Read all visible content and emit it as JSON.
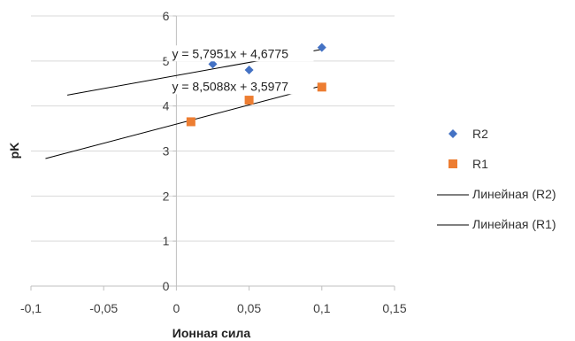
{
  "chart_data": {
    "type": "scatter",
    "xlabel": "Ионная сила",
    "ylabel": "pK",
    "xlim": [
      -0.1,
      0.15
    ],
    "ylim": [
      0,
      6
    ],
    "x_ticks": [
      "-0,1",
      "-0,05",
      "0",
      "0,05",
      "0,1",
      "0,15"
    ],
    "y_ticks": [
      "0",
      "1",
      "2",
      "3",
      "4",
      "5",
      "6"
    ],
    "grid": "horizontal",
    "legend_position": "right",
    "series": [
      {
        "name": "R2",
        "marker": "diamond",
        "color": "#4472C4",
        "points": [
          [
            0.025,
            4.93
          ],
          [
            0.05,
            4.8
          ],
          [
            0.1,
            5.3
          ]
        ]
      },
      {
        "name": "R1",
        "marker": "square",
        "color": "#ED7D31",
        "points": [
          [
            0.01,
            3.65
          ],
          [
            0.05,
            4.13
          ],
          [
            0.1,
            4.42
          ]
        ]
      }
    ],
    "trendlines": [
      {
        "name": "Линейная (R2)",
        "slope": 5.7951,
        "intercept": 4.6775,
        "x_range": [
          -0.075,
          0.1
        ],
        "equation": "y = 5,7951x + 4,6775",
        "color": "#000000"
      },
      {
        "name": "Линейная (R1)",
        "slope": 8.5088,
        "intercept": 3.5977,
        "x_range": [
          -0.09,
          0.1
        ],
        "equation": "y = 8,5088x + 3,5977",
        "color": "#000000"
      }
    ]
  }
}
